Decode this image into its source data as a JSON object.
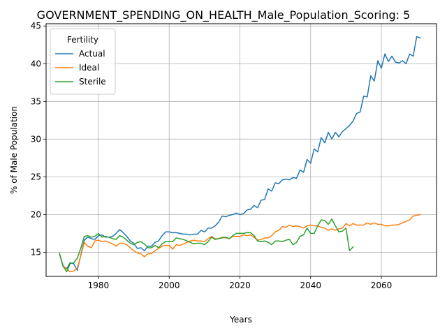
{
  "chart_data": {
    "type": "line",
    "title": "GOVERNMENT_SPENDING_ON_HEALTH_Male_Population_Scoring: 5",
    "xlabel": "Years",
    "ylabel": "% of Male Population",
    "xlim": [
      1965.2,
      2075.6
    ],
    "ylim": [
      11.8,
      45.3
    ],
    "xticks": [
      1980,
      2000,
      2020,
      2040,
      2060
    ],
    "yticks": [
      15,
      20,
      25,
      30,
      35,
      40,
      45
    ],
    "grid": true,
    "legend": {
      "title": "Fertility",
      "placement": "upper-left"
    },
    "series": [
      {
        "name": "Actual",
        "color": "#1f77b4",
        "points": [
          [
            1969,
            14.8
          ],
          [
            1970,
            13.1
          ],
          [
            1971,
            12.8
          ],
          [
            1972,
            13.6
          ],
          [
            1973,
            13.5
          ],
          [
            1974,
            12.6
          ],
          [
            1975,
            14.6
          ],
          [
            1976,
            16.6
          ],
          [
            1977,
            17.0
          ],
          [
            1978,
            16.8
          ],
          [
            1979,
            16.7
          ],
          [
            1980,
            17.2
          ],
          [
            1981,
            17.3
          ],
          [
            1982,
            17.0
          ],
          [
            1983,
            17.0
          ],
          [
            1984,
            17.1
          ],
          [
            1985,
            17.5
          ],
          [
            1986,
            18.0
          ],
          [
            1987,
            17.6
          ],
          [
            1988,
            17.1
          ],
          [
            1989,
            16.5
          ],
          [
            1990,
            16.2
          ],
          [
            1991,
            15.5
          ],
          [
            1992,
            15.6
          ],
          [
            1993,
            15.2
          ],
          [
            1994,
            15.8
          ],
          [
            1995,
            15.8
          ],
          [
            1996,
            16.3
          ],
          [
            1997,
            16.5
          ],
          [
            1998,
            17.2
          ],
          [
            1999,
            17.7
          ],
          [
            2000,
            17.7
          ],
          [
            2001,
            17.6
          ],
          [
            2002,
            17.6
          ],
          [
            2003,
            17.5
          ],
          [
            2004,
            17.4
          ],
          [
            2005,
            17.4
          ],
          [
            2006,
            17.3
          ],
          [
            2007,
            17.4
          ],
          [
            2008,
            17.4
          ],
          [
            2009,
            17.9
          ],
          [
            2010,
            17.7
          ],
          [
            2011,
            18.2
          ],
          [
            2012,
            18.2
          ],
          [
            2013,
            18.5
          ],
          [
            2014,
            19.0
          ],
          [
            2015,
            19.8
          ],
          [
            2016,
            19.7
          ],
          [
            2017,
            19.9
          ],
          [
            2018,
            20.0
          ],
          [
            2019,
            20.2
          ],
          [
            2020,
            20.0
          ],
          [
            2021,
            20.1
          ],
          [
            2022,
            20.6
          ],
          [
            2023,
            20.7
          ],
          [
            2024,
            21.2
          ],
          [
            2025,
            20.9
          ],
          [
            2026,
            21.9
          ],
          [
            2027,
            22.0
          ],
          [
            2028,
            23.4
          ],
          [
            2029,
            23.1
          ],
          [
            2030,
            24.2
          ],
          [
            2031,
            24.1
          ],
          [
            2032,
            24.6
          ],
          [
            2033,
            24.7
          ],
          [
            2034,
            24.6
          ],
          [
            2035,
            24.9
          ],
          [
            2036,
            24.8
          ],
          [
            2037,
            25.9
          ],
          [
            2038,
            25.6
          ],
          [
            2039,
            27.3
          ],
          [
            2040,
            26.8
          ],
          [
            2041,
            28.7
          ],
          [
            2042,
            28.3
          ],
          [
            2043,
            30.2
          ],
          [
            2044,
            29.5
          ],
          [
            2045,
            30.9
          ],
          [
            2046,
            30.0
          ],
          [
            2047,
            30.9
          ],
          [
            2048,
            30.3
          ],
          [
            2049,
            31.0
          ],
          [
            2050,
            31.4
          ],
          [
            2051,
            31.8
          ],
          [
            2052,
            32.4
          ],
          [
            2053,
            33.4
          ],
          [
            2054,
            33.6
          ],
          [
            2055,
            35.7
          ],
          [
            2056,
            35.6
          ],
          [
            2057,
            38.4
          ],
          [
            2058,
            37.7
          ],
          [
            2059,
            40.4
          ],
          [
            2060,
            39.4
          ],
          [
            2061,
            41.3
          ],
          [
            2062,
            40.3
          ],
          [
            2063,
            41.0
          ],
          [
            2064,
            40.2
          ],
          [
            2065,
            40.1
          ],
          [
            2066,
            40.4
          ],
          [
            2067,
            40.0
          ],
          [
            2068,
            41.3
          ],
          [
            2069,
            41.0
          ],
          [
            2070,
            43.6
          ],
          [
            2071,
            43.4
          ]
        ]
      },
      {
        "name": "Ideal",
        "color": "#ff7f0e",
        "points": [
          [
            1969,
            14.8
          ],
          [
            1970,
            13.2
          ],
          [
            1971,
            12.8
          ],
          [
            1972,
            12.4
          ],
          [
            1973,
            12.5
          ],
          [
            1974,
            12.9
          ],
          [
            1975,
            14.5
          ],
          [
            1976,
            16.3
          ],
          [
            1977,
            15.8
          ],
          [
            1978,
            15.6
          ],
          [
            1979,
            16.5
          ],
          [
            1980,
            16.6
          ],
          [
            1981,
            16.4
          ],
          [
            1982,
            16.5
          ],
          [
            1983,
            16.3
          ],
          [
            1984,
            16.1
          ],
          [
            1985,
            15.8
          ],
          [
            1986,
            16.2
          ],
          [
            1987,
            16.2
          ],
          [
            1988,
            16.0
          ],
          [
            1989,
            15.6
          ],
          [
            1990,
            15.2
          ],
          [
            1991,
            14.9
          ],
          [
            1992,
            14.8
          ],
          [
            1993,
            14.4
          ],
          [
            1994,
            14.8
          ],
          [
            1995,
            14.8
          ],
          [
            1996,
            15.2
          ],
          [
            1997,
            15.5
          ],
          [
            1998,
            15.8
          ],
          [
            1999,
            15.9
          ],
          [
            2000,
            15.9
          ],
          [
            2001,
            15.4
          ],
          [
            2002,
            16.0
          ],
          [
            2003,
            15.9
          ],
          [
            2004,
            16.1
          ],
          [
            2005,
            16.3
          ],
          [
            2006,
            16.5
          ],
          [
            2007,
            16.6
          ],
          [
            2008,
            16.5
          ],
          [
            2009,
            16.5
          ],
          [
            2010,
            16.4
          ],
          [
            2011,
            16.8
          ],
          [
            2012,
            17.1
          ],
          [
            2013,
            16.8
          ],
          [
            2014,
            16.8
          ],
          [
            2015,
            17.0
          ],
          [
            2016,
            16.9
          ],
          [
            2017,
            16.8
          ],
          [
            2018,
            17.1
          ],
          [
            2019,
            17.1
          ],
          [
            2020,
            17.1
          ],
          [
            2021,
            17.3
          ],
          [
            2022,
            17.2
          ],
          [
            2023,
            17.3
          ],
          [
            2024,
            17.0
          ],
          [
            2025,
            16.6
          ],
          [
            2026,
            16.7
          ],
          [
            2027,
            16.9
          ],
          [
            2028,
            16.9
          ],
          [
            2029,
            17.2
          ],
          [
            2030,
            17.7
          ],
          [
            2031,
            17.9
          ],
          [
            2032,
            18.4
          ],
          [
            2033,
            18.3
          ],
          [
            2034,
            18.6
          ],
          [
            2035,
            18.4
          ],
          [
            2036,
            18.5
          ],
          [
            2037,
            18.4
          ],
          [
            2038,
            18.2
          ],
          [
            2039,
            18.5
          ],
          [
            2040,
            18.6
          ],
          [
            2041,
            18.5
          ],
          [
            2042,
            18.5
          ],
          [
            2043,
            18.3
          ],
          [
            2044,
            18.2
          ],
          [
            2045,
            17.9
          ],
          [
            2046,
            18.1
          ],
          [
            2047,
            17.9
          ],
          [
            2048,
            18.1
          ],
          [
            2049,
            18.2
          ],
          [
            2050,
            18.8
          ],
          [
            2051,
            18.5
          ],
          [
            2052,
            18.8
          ],
          [
            2053,
            18.6
          ],
          [
            2054,
            18.6
          ],
          [
            2055,
            18.6
          ],
          [
            2056,
            18.9
          ],
          [
            2057,
            18.7
          ],
          [
            2058,
            18.9
          ],
          [
            2059,
            18.7
          ],
          [
            2060,
            18.7
          ],
          [
            2061,
            18.5
          ],
          [
            2062,
            18.5
          ],
          [
            2063,
            18.6
          ],
          [
            2064,
            18.6
          ],
          [
            2065,
            18.7
          ],
          [
            2066,
            18.9
          ],
          [
            2067,
            19.1
          ],
          [
            2068,
            19.3
          ],
          [
            2069,
            19.8
          ],
          [
            2070,
            19.9
          ],
          [
            2071,
            20.0
          ]
        ]
      },
      {
        "name": "Sterile",
        "color": "#2ca02c",
        "points": [
          [
            1969,
            14.8
          ],
          [
            1970,
            13.2
          ],
          [
            1971,
            12.4
          ],
          [
            1972,
            13.5
          ],
          [
            1973,
            13.6
          ],
          [
            1974,
            14.2
          ],
          [
            1975,
            15.5
          ],
          [
            1976,
            17.1
          ],
          [
            1977,
            17.2
          ],
          [
            1978,
            17.0
          ],
          [
            1979,
            17.1
          ],
          [
            1980,
            17.5
          ],
          [
            1981,
            17.0
          ],
          [
            1982,
            17.1
          ],
          [
            1983,
            17.0
          ],
          [
            1984,
            16.8
          ],
          [
            1985,
            16.7
          ],
          [
            1986,
            17.2
          ],
          [
            1987,
            17.0
          ],
          [
            1988,
            16.6
          ],
          [
            1989,
            16.2
          ],
          [
            1990,
            16.0
          ],
          [
            1991,
            16.3
          ],
          [
            1992,
            16.4
          ],
          [
            1993,
            16.1
          ],
          [
            1994,
            15.6
          ],
          [
            1995,
            15.6
          ],
          [
            1996,
            15.9
          ],
          [
            1997,
            15.6
          ],
          [
            1998,
            16.1
          ],
          [
            1999,
            16.4
          ],
          [
            2000,
            16.4
          ],
          [
            2001,
            16.4
          ],
          [
            2002,
            16.9
          ],
          [
            2003,
            16.8
          ],
          [
            2004,
            16.7
          ],
          [
            2005,
            16.5
          ],
          [
            2006,
            16.3
          ],
          [
            2007,
            16.1
          ],
          [
            2008,
            16.2
          ],
          [
            2009,
            16.2
          ],
          [
            2010,
            16.0
          ],
          [
            2011,
            16.4
          ],
          [
            2012,
            17.0
          ],
          [
            2013,
            16.7
          ],
          [
            2014,
            16.8
          ],
          [
            2015,
            16.9
          ],
          [
            2016,
            17.0
          ],
          [
            2017,
            16.8
          ],
          [
            2018,
            17.2
          ],
          [
            2019,
            17.5
          ],
          [
            2020,
            17.5
          ],
          [
            2021,
            17.5
          ],
          [
            2022,
            17.6
          ],
          [
            2023,
            17.6
          ],
          [
            2024,
            17.2
          ],
          [
            2025,
            16.5
          ],
          [
            2026,
            16.4
          ],
          [
            2027,
            16.5
          ],
          [
            2028,
            16.3
          ],
          [
            2029,
            16.0
          ],
          [
            2030,
            16.5
          ],
          [
            2031,
            16.5
          ],
          [
            2032,
            16.4
          ],
          [
            2033,
            16.6
          ],
          [
            2034,
            16.7
          ],
          [
            2035,
            16.0
          ],
          [
            2036,
            16.3
          ],
          [
            2037,
            17.1
          ],
          [
            2038,
            17.3
          ],
          [
            2039,
            18.2
          ],
          [
            2040,
            17.5
          ],
          [
            2041,
            17.5
          ],
          [
            2042,
            18.5
          ],
          [
            2043,
            19.3
          ],
          [
            2044,
            19.2
          ],
          [
            2045,
            18.7
          ],
          [
            2046,
            19.4
          ],
          [
            2047,
            18.5
          ],
          [
            2048,
            17.7
          ],
          [
            2049,
            17.8
          ],
          [
            2050,
            18.2
          ],
          [
            2051,
            15.2
          ],
          [
            2052,
            15.7
          ]
        ]
      }
    ]
  }
}
